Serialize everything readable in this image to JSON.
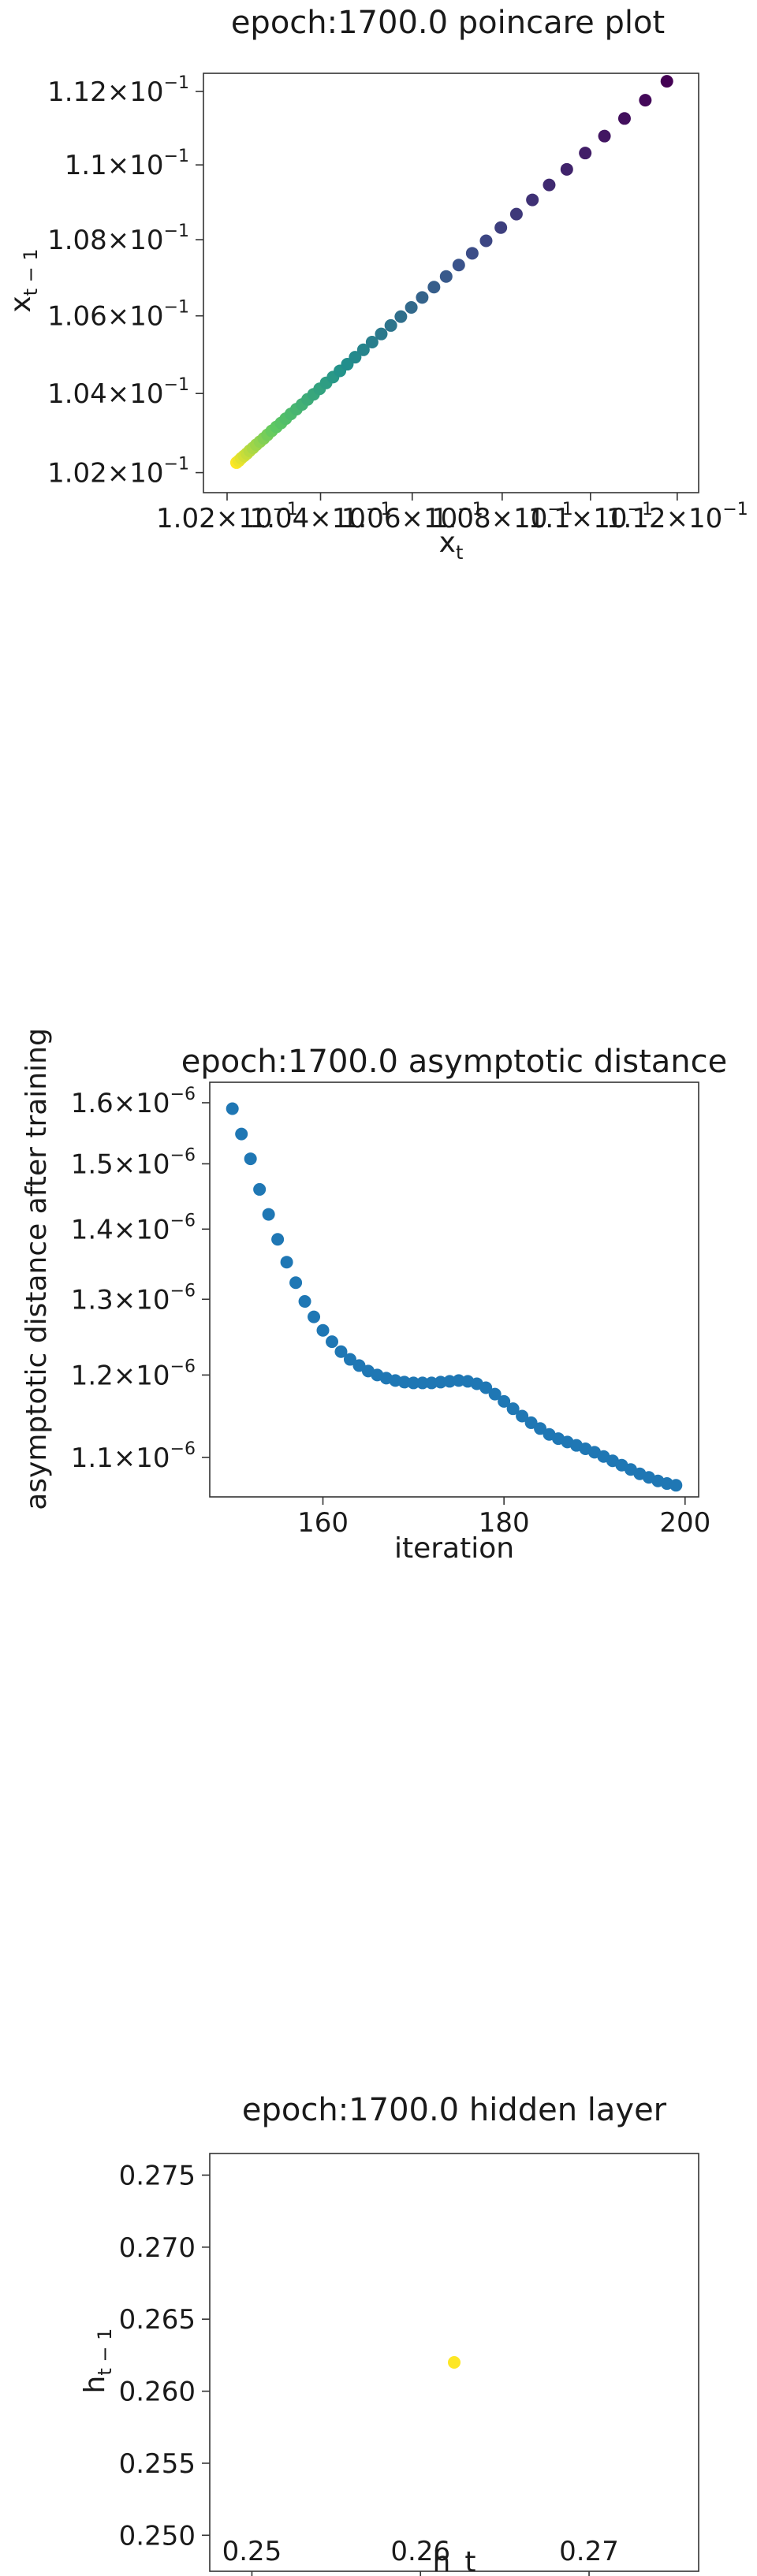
{
  "chart_data": [
    {
      "type": "scatter",
      "title": "epoch:1700.0 poincare plot",
      "xlabel_base": "x",
      "xlabel_sub": "t",
      "ylabel_base": "x",
      "ylabel_sub": "t − 1",
      "xscale": "log",
      "yscale": "log",
      "xlim": [
        0.1015,
        0.1125
      ],
      "ylim": [
        0.1015,
        0.1125
      ],
      "grid": false,
      "colormap": "viridis",
      "color_high": "#440154",
      "color_low": "#fde725",
      "xticks": [
        {
          "value": 0.102,
          "mant": "1.02",
          "exp": "−1"
        },
        {
          "value": 0.104,
          "mant": "1.04",
          "exp": "−1"
        },
        {
          "value": 0.106,
          "mant": "1.06",
          "exp": "−1"
        },
        {
          "value": 0.108,
          "mant": "1.08",
          "exp": "−1"
        },
        {
          "value": 0.11,
          "mant": "1.1",
          "exp": "−1"
        },
        {
          "value": 0.112,
          "mant": "1.12",
          "exp": "−1"
        }
      ],
      "yticks": [
        {
          "value": 0.102,
          "mant": "1.02",
          "exp": "−1"
        },
        {
          "value": 0.104,
          "mant": "1.04",
          "exp": "−1"
        },
        {
          "value": 0.106,
          "mant": "1.06",
          "exp": "−1"
        },
        {
          "value": 0.108,
          "mant": "1.08",
          "exp": "−1"
        },
        {
          "value": 0.11,
          "mant": "1.1",
          "exp": "−1"
        },
        {
          "value": 0.112,
          "mant": "1.12",
          "exp": "−1"
        }
      ],
      "x": [
        0.1022,
        0.10225,
        0.1023,
        0.10236,
        0.10242,
        0.10248,
        0.10255,
        0.10262,
        0.1027,
        0.10278,
        0.10286,
        0.10295,
        0.10305,
        0.10315,
        0.10325,
        0.10336,
        0.10348,
        0.1036,
        0.10372,
        0.10385,
        0.10398,
        0.10412,
        0.10427,
        0.10442,
        0.10458,
        0.10475,
        0.10493,
        0.10512,
        0.10532,
        0.10553,
        0.10575,
        0.10598,
        0.10622,
        0.10648,
        0.10675,
        0.10703,
        0.10733,
        0.10764,
        0.10797,
        0.10832,
        0.10868,
        0.10906,
        0.10946,
        0.10988,
        0.11032,
        0.11078,
        0.11126,
        0.11176
      ],
      "y": [
        0.10225,
        0.1023,
        0.10236,
        0.10242,
        0.10248,
        0.10255,
        0.10262,
        0.1027,
        0.10278,
        0.10286,
        0.10295,
        0.10305,
        0.10315,
        0.10325,
        0.10336,
        0.10348,
        0.1036,
        0.10372,
        0.10385,
        0.10398,
        0.10412,
        0.10427,
        0.10442,
        0.10458,
        0.10475,
        0.10493,
        0.10512,
        0.10532,
        0.10553,
        0.10575,
        0.10598,
        0.10622,
        0.10648,
        0.10675,
        0.10703,
        0.10733,
        0.10764,
        0.10797,
        0.10832,
        0.10868,
        0.10906,
        0.10946,
        0.10988,
        0.11032,
        0.11078,
        0.11126,
        0.11176,
        0.11228
      ]
    },
    {
      "type": "scatter",
      "title": "epoch:1700.0 asymptotic distance",
      "xlabel": "iteration",
      "ylabel": "asymptotic distance after training",
      "yscale": "log",
      "xlim": [
        147.5,
        201.5
      ],
      "ylim": [
        1.055e-06,
        1.635e-06
      ],
      "grid": false,
      "color": "#1f77b4",
      "xticks": [
        {
          "value": 160,
          "label": "160"
        },
        {
          "value": 180,
          "label": "180"
        },
        {
          "value": 200,
          "label": "200"
        }
      ],
      "yticks": [
        {
          "value": 1.1e-06,
          "mant": "1.1",
          "exp": "−6"
        },
        {
          "value": 1.2e-06,
          "mant": "1.2",
          "exp": "−6"
        },
        {
          "value": 1.3e-06,
          "mant": "1.3",
          "exp": "−6"
        },
        {
          "value": 1.4e-06,
          "mant": "1.4",
          "exp": "−6"
        },
        {
          "value": 1.5e-06,
          "mant": "1.5",
          "exp": "−6"
        },
        {
          "value": 1.6e-06,
          "mant": "1.6",
          "exp": "−6"
        }
      ],
      "x": [
        150,
        151,
        152,
        153,
        154,
        155,
        156,
        157,
        158,
        159,
        160,
        161,
        162,
        163,
        164,
        165,
        166,
        167,
        168,
        169,
        170,
        171,
        172,
        173,
        174,
        175,
        176,
        177,
        178,
        179,
        180,
        181,
        182,
        183,
        184,
        185,
        186,
        187,
        188,
        189,
        190,
        191,
        192,
        193,
        194,
        195,
        196,
        197,
        198,
        199
      ],
      "y": [
        1.59e-06,
        1.548e-06,
        1.508e-06,
        1.46e-06,
        1.422e-06,
        1.385e-06,
        1.352e-06,
        1.323e-06,
        1.297e-06,
        1.276e-06,
        1.258e-06,
        1.243e-06,
        1.23e-06,
        1.22e-06,
        1.212e-06,
        1.205e-06,
        1.2e-06,
        1.196e-06,
        1.193e-06,
        1.191e-06,
        1.19e-06,
        1.19e-06,
        1.19e-06,
        1.191e-06,
        1.192e-06,
        1.193e-06,
        1.192e-06,
        1.189e-06,
        1.184e-06,
        1.176e-06,
        1.167e-06,
        1.158e-06,
        1.149e-06,
        1.141e-06,
        1.134e-06,
        1.127e-06,
        1.122e-06,
        1.118e-06,
        1.114e-06,
        1.11e-06,
        1.106e-06,
        1.101e-06,
        1.096e-06,
        1.091e-06,
        1.086e-06,
        1.081e-06,
        1.077e-06,
        1.073e-06,
        1.07e-06,
        1.068e-06
      ]
    },
    {
      "type": "scatter",
      "title": "epoch:1700.0 hidden layer",
      "xlabel": "h_t",
      "ylabel_base": "h",
      "ylabel_sub": "t − 1",
      "xlim": [
        0.2475,
        0.2765
      ],
      "ylim": [
        0.2475,
        0.2765
      ],
      "grid": false,
      "color": "#fde725",
      "xticks": [
        {
          "value": 0.25,
          "label": "0.25"
        },
        {
          "value": 0.26,
          "label": "0.26"
        },
        {
          "value": 0.27,
          "label": "0.27"
        }
      ],
      "yticks": [
        {
          "value": 0.25,
          "label": "0.250"
        },
        {
          "value": 0.255,
          "label": "0.255"
        },
        {
          "value": 0.26,
          "label": "0.260"
        },
        {
          "value": 0.265,
          "label": "0.265"
        },
        {
          "value": 0.27,
          "label": "0.270"
        },
        {
          "value": 0.275,
          "label": "0.275"
        }
      ],
      "x": [
        0.262
      ],
      "y": [
        0.262
      ]
    }
  ]
}
